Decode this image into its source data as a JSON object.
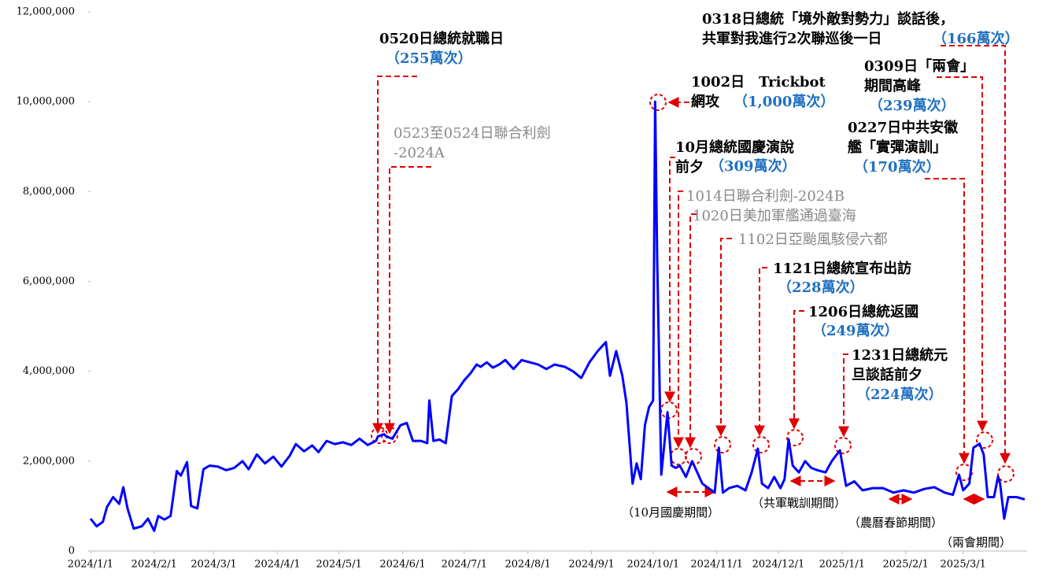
{
  "chart_data": {
    "type": "line",
    "x": [
      "2024/1/1",
      "2024/1/4",
      "2024/1/7",
      "2024/1/9",
      "2024/1/12",
      "2024/1/15",
      "2024/1/17",
      "2024/1/19",
      "2024/1/22",
      "2024/1/26",
      "2024/1/29",
      "2024/2/1",
      "2024/2/3",
      "2024/2/6",
      "2024/2/9",
      "2024/2/12",
      "2024/2/14",
      "2024/2/17",
      "2024/2/19",
      "2024/2/22",
      "2024/2/25",
      "2024/2/28",
      "2024/3/3",
      "2024/3/7",
      "2024/3/11",
      "2024/3/15",
      "2024/3/18",
      "2024/3/22",
      "2024/3/26",
      "2024/3/30",
      "2024/4/3",
      "2024/4/7",
      "2024/4/10",
      "2024/4/14",
      "2024/4/18",
      "2024/4/21",
      "2024/4/25",
      "2024/4/29",
      "2024/5/3",
      "2024/5/7",
      "2024/5/11",
      "2024/5/15",
      "2024/5/19",
      "2024/5/20",
      "2024/5/23",
      "2024/5/24",
      "2024/5/27",
      "2024/5/31",
      "2024/6/3",
      "2024/6/6",
      "2024/6/10",
      "2024/6/13",
      "2024/6/14",
      "2024/6/16",
      "2024/6/19",
      "2024/6/22",
      "2024/6/25",
      "2024/6/28",
      "2024/7/1",
      "2024/7/4",
      "2024/7/7",
      "2024/7/9",
      "2024/7/12",
      "2024/7/15",
      "2024/7/18",
      "2024/7/21",
      "2024/7/25",
      "2024/7/29",
      "2024/8/2",
      "2024/8/6",
      "2024/8/10",
      "2024/8/14",
      "2024/8/19",
      "2024/8/23",
      "2024/8/27",
      "2024/8/31",
      "2024/9/4",
      "2024/9/8",
      "2024/9/10",
      "2024/9/13",
      "2024/9/16",
      "2024/9/18",
      "2024/9/21",
      "2024/9/23",
      "2024/9/25",
      "2024/9/27",
      "2024/9/29",
      "2024/10/1",
      "2024/10/2",
      "2024/10/3",
      "2024/10/5",
      "2024/10/8",
      "2024/10/10",
      "2024/10/12",
      "2024/10/14",
      "2024/10/17",
      "2024/10/20",
      "2024/10/22",
      "2024/10/25",
      "2024/10/28",
      "2024/10/31",
      "2024/11/2",
      "2024/11/4",
      "2024/11/7",
      "2024/11/11",
      "2024/11/15",
      "2024/11/18",
      "2024/11/21",
      "2024/11/23",
      "2024/11/26",
      "2024/11/29",
      "2024/12/2",
      "2024/12/4",
      "2024/12/6",
      "2024/12/8",
      "2024/12/11",
      "2024/12/14",
      "2024/12/17",
      "2024/12/20",
      "2024/12/24",
      "2024/12/27",
      "2024/12/31",
      "2025/1/3",
      "2025/1/7",
      "2025/1/11",
      "2025/1/16",
      "2025/1/21",
      "2025/1/26",
      "2025/1/31",
      "2025/2/5",
      "2025/2/10",
      "2025/2/15",
      "2025/2/20",
      "2025/2/24",
      "2025/2/27",
      "2025/3/1",
      "2025/3/4",
      "2025/3/6",
      "2025/3/9",
      "2025/3/11",
      "2025/3/13",
      "2025/3/16",
      "2025/3/18",
      "2025/3/19",
      "2025/3/21",
      "2025/3/23",
      "2025/3/27",
      "2025/3/31"
    ],
    "series": [
      {
        "color": "#0000ff",
        "values": [
          720000,
          550000,
          650000,
          980000,
          1200000,
          1050000,
          1420000,
          950000,
          500000,
          550000,
          720000,
          450000,
          780000,
          700000,
          780000,
          1780000,
          1680000,
          1980000,
          1000000,
          950000,
          1820000,
          1900000,
          1880000,
          1800000,
          1850000,
          2000000,
          1820000,
          2150000,
          1950000,
          2100000,
          1880000,
          2120000,
          2380000,
          2220000,
          2350000,
          2200000,
          2450000,
          2380000,
          2420000,
          2360000,
          2500000,
          2360000,
          2450000,
          2550000,
          2600000,
          2550000,
          2500000,
          2800000,
          2850000,
          2450000,
          2450000,
          2400000,
          3350000,
          2450000,
          2480000,
          2400000,
          3450000,
          3600000,
          3800000,
          3950000,
          4150000,
          4100000,
          4200000,
          4080000,
          4150000,
          4250000,
          4050000,
          4250000,
          4200000,
          4150000,
          4050000,
          4150000,
          4100000,
          4000000,
          3850000,
          4200000,
          4450000,
          4650000,
          3900000,
          4450000,
          3900000,
          3300000,
          1500000,
          1950000,
          1600000,
          2800000,
          3200000,
          3350000,
          10000000,
          6500000,
          1700000,
          3090000,
          1900000,
          1850000,
          1900000,
          1650000,
          2000000,
          1800000,
          1500000,
          1400000,
          1300000,
          2300000,
          1300000,
          1400000,
          1450000,
          1350000,
          1750000,
          2280000,
          1500000,
          1400000,
          1650000,
          1400000,
          1600000,
          2490000,
          1900000,
          1750000,
          2000000,
          1850000,
          1800000,
          1750000,
          2000000,
          2240000,
          1450000,
          1550000,
          1350000,
          1400000,
          1400000,
          1300000,
          1350000,
          1300000,
          1380000,
          1420000,
          1300000,
          1250000,
          1700000,
          1350000,
          1500000,
          2300000,
          2390000,
          2150000,
          1200000,
          1200000,
          1660000,
          1500000,
          720000,
          1200000,
          1200000,
          1150000
        ]
      }
    ],
    "xlim": [
      "2024/1/1",
      "2025/3/31"
    ],
    "xticks": [
      "2024/1/1",
      "2024/2/1",
      "2024/3/1",
      "2024/4/1",
      "2024/5/1",
      "2024/6/1",
      "2024/7/1",
      "2024/8/1",
      "2024/9/1",
      "2024/10/1",
      "2024/11/1",
      "2024/12/1",
      "2025/1/1",
      "2025/2/1",
      "2025/3/1"
    ],
    "ylim": [
      0,
      12000000
    ],
    "yticks": [
      0,
      {
        "value": 2000000,
        "label": "2,000,000"
      },
      {
        "value": 4000000,
        "label": "4,000,000"
      },
      {
        "value": 6000000,
        "label": "6,000,000"
      },
      {
        "value": 8000000,
        "label": "8,000,000"
      },
      {
        "value": 10000000,
        "label": "10,000,000"
      },
      {
        "value": 12000000,
        "label": "12,000,000"
      }
    ],
    "grid": false,
    "annotations": [
      {
        "lines": [
          "0520日總統就職日"
        ],
        "count": "（255萬次）"
      },
      {
        "lines": [
          "0523至0524日聯合利劍",
          "-2024A"
        ]
      },
      {
        "lines": [
          "1002日　Trickbot",
          "網攻"
        ],
        "count": "（1,000萬次）"
      },
      {
        "lines": [
          "10月總統國慶演說",
          "前夕"
        ],
        "count": "（309萬次）"
      },
      {
        "lines": [
          "1014日聯合利劍-2024B"
        ]
      },
      {
        "lines": [
          "1020日美加軍艦通過臺海"
        ]
      },
      {
        "lines": [
          "1102日亞颱風駭侵六都"
        ]
      },
      {
        "lines": [
          "1121日總統宣布出訪"
        ],
        "count": "（228萬次）"
      },
      {
        "lines": [
          "1206日總統返國"
        ],
        "count": "（249萬次）"
      },
      {
        "lines": [
          "1231日總統元",
          "旦談話前夕"
        ],
        "count": "（224萬次）"
      },
      {
        "lines": [
          "0227日中共安徽",
          "艦「實彈演訓」"
        ],
        "count": "（170萬次）"
      },
      {
        "lines": [
          "0309日「兩會」",
          "期間高峰"
        ],
        "count": "（239萬次）"
      },
      {
        "lines": [
          "0318日總統「境外敵對勢力」談話後，",
          "共軍對我進行2次聯巡後一日"
        ],
        "count": "（166萬次）"
      }
    ],
    "period_labels": [
      "（10月國慶期間）",
      "（共軍戰訓期間）",
      "（農曆春節期間）",
      "（兩會期間）"
    ]
  }
}
